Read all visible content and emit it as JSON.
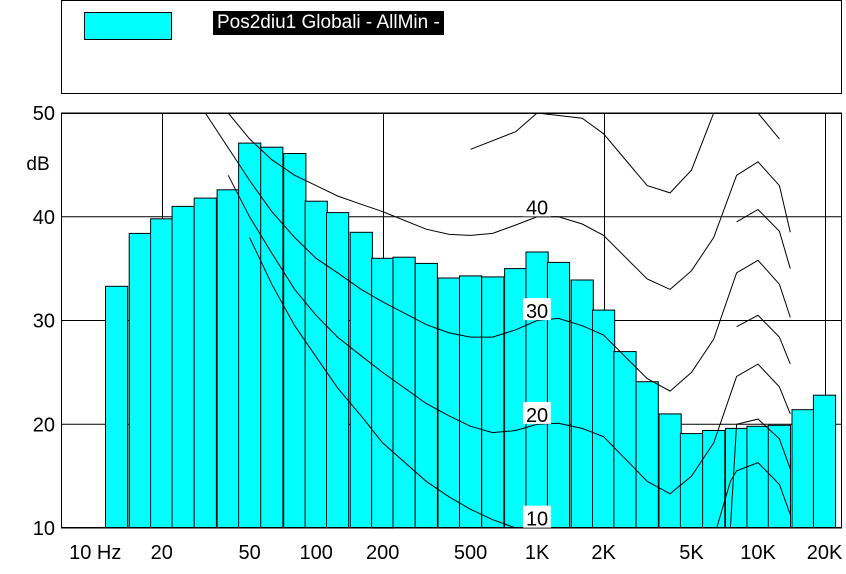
{
  "legend": {
    "label": "Pos2diu1 Globali - AllMin -",
    "swatch_color": "#00ffff"
  },
  "chart_data": {
    "type": "bar",
    "ylabel": "dB",
    "ylim": [
      10,
      50
    ],
    "y_ticks": [
      "50",
      "40",
      "30",
      "20",
      "10"
    ],
    "y_tick_values": [
      50,
      40,
      30,
      20,
      10
    ],
    "x_scale": "log",
    "x_ticks": [
      {
        "label": "10 Hz",
        "value": 10
      },
      {
        "label": "20",
        "value": 20
      },
      {
        "label": "50",
        "value": 50
      },
      {
        "label": "100",
        "value": 100
      },
      {
        "label": "200",
        "value": 200
      },
      {
        "label": "500",
        "value": 500
      },
      {
        "label": "1K",
        "value": 1000
      },
      {
        "label": "2K",
        "value": 2000
      },
      {
        "label": "5K",
        "value": 5000
      },
      {
        "label": "10K",
        "value": 10000
      },
      {
        "label": "20K",
        "value": 20000
      }
    ],
    "x_grid_values": [
      20,
      200,
      2000,
      20000
    ],
    "bar_color": "#00ffff",
    "bars": [
      {
        "f": 12.5,
        "v": 33.3
      },
      {
        "f": 16,
        "v": 38.4
      },
      {
        "f": 20,
        "v": 39.8
      },
      {
        "f": 25,
        "v": 41.0
      },
      {
        "f": 31.5,
        "v": 41.8
      },
      {
        "f": 40,
        "v": 42.6
      },
      {
        "f": 50,
        "v": 47.1
      },
      {
        "f": 63,
        "v": 46.7
      },
      {
        "f": 80,
        "v": 46.1
      },
      {
        "f": 100,
        "v": 41.5
      },
      {
        "f": 125,
        "v": 40.4
      },
      {
        "f": 160,
        "v": 38.5
      },
      {
        "f": 200,
        "v": 36.0
      },
      {
        "f": 250,
        "v": 36.1
      },
      {
        "f": 315,
        "v": 35.5
      },
      {
        "f": 400,
        "v": 34.1
      },
      {
        "f": 500,
        "v": 34.3
      },
      {
        "f": 630,
        "v": 34.2
      },
      {
        "f": 800,
        "v": 35.0
      },
      {
        "f": 1000,
        "v": 36.6
      },
      {
        "f": 1250,
        "v": 35.6
      },
      {
        "f": 1600,
        "v": 33.9
      },
      {
        "f": 2000,
        "v": 31.0
      },
      {
        "f": 2500,
        "v": 27.0
      },
      {
        "f": 3150,
        "v": 24.1
      },
      {
        "f": 4000,
        "v": 21.0
      },
      {
        "f": 5000,
        "v": 19.1
      },
      {
        "f": 6300,
        "v": 19.4
      },
      {
        "f": 8000,
        "v": 19.6
      },
      {
        "f": 10000,
        "v": 19.8
      },
      {
        "f": 12500,
        "v": 19.9
      },
      {
        "f": 16000,
        "v": 21.4
      },
      {
        "f": 20000,
        "v": 22.8
      }
    ],
    "contour_labels": [
      {
        "label": "40",
        "f": 1000,
        "v": 41
      },
      {
        "label": "30",
        "f": 1000,
        "v": 31
      },
      {
        "label": "20",
        "f": 1000,
        "v": 21
      },
      {
        "label": "10",
        "f": 1000,
        "v": 11
      }
    ],
    "contours": [
      {
        "level": 50,
        "points": [
          [
            500,
            46.5
          ],
          [
            800,
            48.2
          ],
          [
            1000,
            50
          ],
          [
            1600,
            49.5
          ],
          [
            2000,
            48
          ],
          [
            3150,
            43
          ],
          [
            4000,
            42.3
          ],
          [
            5000,
            44.5
          ],
          [
            6300,
            50
          ]
        ],
        "right": [
          [
            10000,
            50
          ],
          [
            12500,
            47.5
          ]
        ]
      },
      {
        "level": 40,
        "points": [
          [
            40,
            50
          ],
          [
            50,
            47.5
          ],
          [
            63,
            45.5
          ],
          [
            80,
            44
          ],
          [
            100,
            43
          ],
          [
            125,
            42
          ],
          [
            160,
            41.2
          ],
          [
            200,
            40.5
          ],
          [
            315,
            38.8
          ],
          [
            400,
            38.3
          ],
          [
            500,
            38.2
          ],
          [
            630,
            38.4
          ],
          [
            800,
            39.2
          ],
          [
            1000,
            40
          ],
          [
            1250,
            40
          ],
          [
            1600,
            39.3
          ],
          [
            2000,
            38.2
          ],
          [
            3150,
            34
          ],
          [
            4000,
            33
          ],
          [
            5000,
            34.8
          ],
          [
            6300,
            38
          ],
          [
            8000,
            44
          ],
          [
            10000,
            45.3
          ],
          [
            12500,
            43
          ],
          [
            14000,
            38.5
          ]
        ]
      },
      {
        "level": 30,
        "points": [
          [
            31.5,
            50
          ],
          [
            50,
            43.5
          ],
          [
            63,
            40.5
          ],
          [
            80,
            38
          ],
          [
            100,
            36
          ],
          [
            125,
            34.6
          ],
          [
            160,
            33
          ],
          [
            200,
            31.8
          ],
          [
            315,
            29.6
          ],
          [
            400,
            28.8
          ],
          [
            500,
            28.4
          ],
          [
            630,
            28.4
          ],
          [
            800,
            29.1
          ],
          [
            1000,
            30
          ],
          [
            1250,
            30.2
          ],
          [
            1600,
            29.5
          ],
          [
            2000,
            28.6
          ],
          [
            3150,
            24.4
          ],
          [
            4000,
            23.2
          ],
          [
            5000,
            25
          ],
          [
            6300,
            28.2
          ],
          [
            8000,
            34.6
          ],
          [
            10000,
            35.8
          ],
          [
            12500,
            33.5
          ],
          [
            14000,
            30.3
          ]
        ]
      },
      {
        "level": 20,
        "points": [
          [
            40,
            44
          ],
          [
            50,
            40
          ],
          [
            63,
            36.5
          ],
          [
            80,
            33
          ],
          [
            100,
            30.5
          ],
          [
            125,
            28.4
          ],
          [
            160,
            26.6
          ],
          [
            200,
            25
          ],
          [
            315,
            22
          ],
          [
            400,
            20.8
          ],
          [
            500,
            19.8
          ],
          [
            630,
            19.2
          ],
          [
            800,
            19.4
          ],
          [
            1000,
            20
          ],
          [
            1250,
            20.1
          ],
          [
            1600,
            19.6
          ],
          [
            2000,
            18.8
          ],
          [
            3150,
            14.5
          ],
          [
            4000,
            13.3
          ],
          [
            5000,
            15
          ],
          [
            6300,
            18.2
          ],
          [
            8000,
            24.6
          ],
          [
            10000,
            25.8
          ],
          [
            12500,
            23.6
          ],
          [
            14000,
            21
          ]
        ]
      },
      {
        "level": 10,
        "points": [
          [
            50,
            38
          ],
          [
            63,
            33.5
          ],
          [
            80,
            29.5
          ],
          [
            100,
            26.5
          ],
          [
            125,
            23.5
          ],
          [
            160,
            20.8
          ],
          [
            200,
            18.2
          ],
          [
            315,
            14.5
          ],
          [
            400,
            13
          ],
          [
            500,
            11.8
          ],
          [
            630,
            10.8
          ],
          [
            800,
            10
          ]
        ],
        "right": [
          [
            6500,
            10
          ],
          [
            7500,
            14.5
          ],
          [
            8000,
            15.5
          ],
          [
            10000,
            16.3
          ],
          [
            12500,
            14.2
          ],
          [
            14000,
            11.3
          ]
        ]
      },
      {
        "level": 35,
        "points": [
          [
            8000,
            39.5
          ],
          [
            10000,
            40.7
          ],
          [
            12500,
            38.6
          ],
          [
            14000,
            35
          ]
        ]
      },
      {
        "level": 25,
        "points": [
          [
            8000,
            29.4
          ],
          [
            10000,
            30.5
          ],
          [
            12500,
            28.4
          ],
          [
            14000,
            25.8
          ]
        ]
      },
      {
        "level": 15,
        "points": [
          [
            7500,
            10
          ],
          [
            8000,
            20
          ],
          [
            10000,
            20.5
          ],
          [
            12500,
            18.6
          ],
          [
            14000,
            15.7
          ]
        ]
      }
    ]
  }
}
